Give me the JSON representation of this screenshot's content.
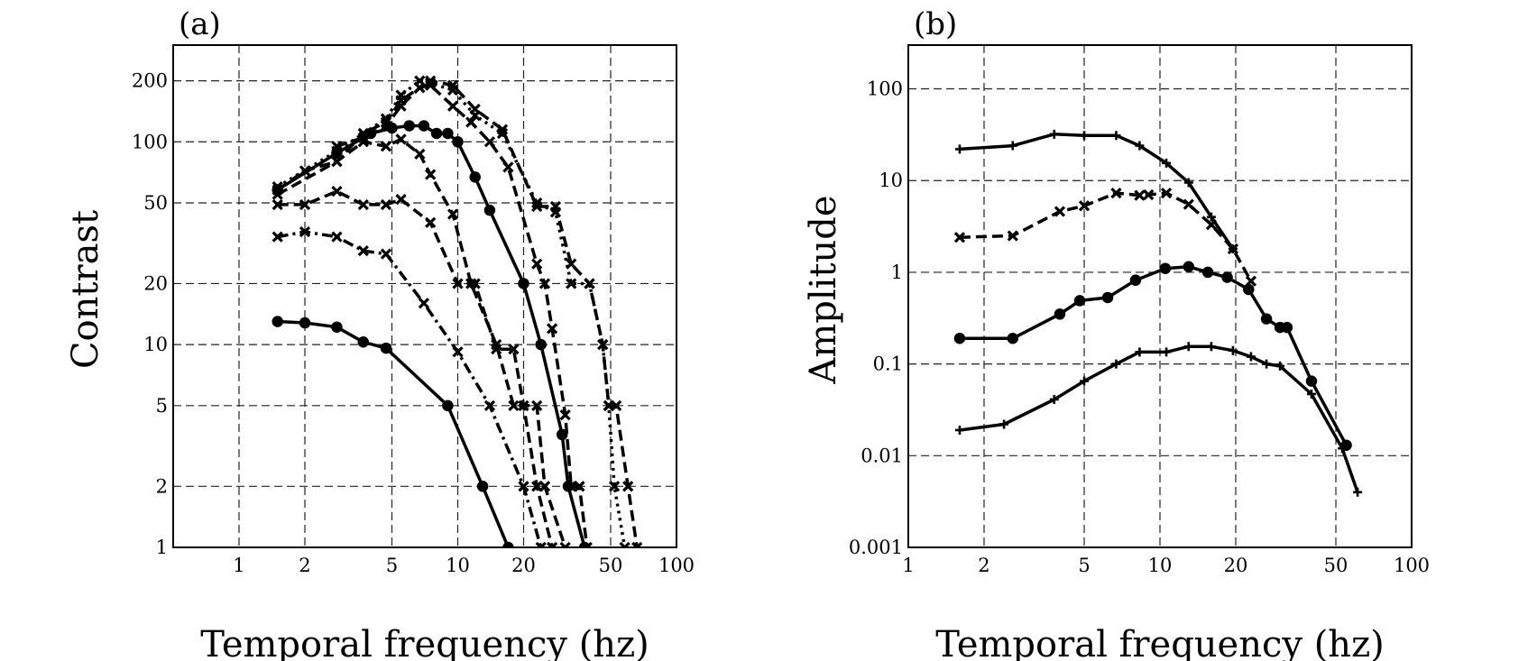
{
  "chart_data": [
    {
      "type": "line",
      "panel_label": "(a)",
      "xlabel": "Temporal frequency (hz)",
      "ylabel": "Contrast",
      "xscale": "log",
      "yscale": "log",
      "xlim": [
        0.5,
        100
      ],
      "ylim": [
        1,
        300
      ],
      "grid": true,
      "xticks": [
        1,
        2,
        5,
        10,
        20,
        50,
        100
      ],
      "xtick_labels": [
        "1",
        "2",
        "5",
        "10",
        "20",
        "50",
        "100"
      ],
      "yticks": [
        1,
        2,
        5,
        10,
        20,
        50,
        100,
        200
      ],
      "ytick_labels": [
        "1",
        "2",
        "5",
        "10",
        "20",
        "50",
        "100",
        "200"
      ],
      "series": [
        {
          "style": "solid",
          "marker": "circle",
          "x": [
            1.5,
            2,
            2.8,
            3.7,
            4.7,
            9,
            13,
            17
          ],
          "y": [
            13,
            12.8,
            12.2,
            10.3,
            9.6,
            5,
            2,
            1
          ]
        },
        {
          "style": "dashdot",
          "marker": "x",
          "x": [
            1.5,
            2,
            2.8,
            3.7,
            4.7,
            7,
            10,
            14,
            20,
            24
          ],
          "y": [
            34,
            36,
            34,
            29,
            28,
            16,
            9.2,
            5,
            2,
            1
          ]
        },
        {
          "style": "dashed",
          "marker": "x",
          "x": [
            1.5,
            2,
            2.8,
            3.7,
            4.7,
            5.5,
            7.5,
            10,
            12,
            15,
            18,
            20,
            23,
            27
          ],
          "y": [
            49,
            49,
            57,
            49,
            49,
            52,
            40,
            20,
            20,
            9.5,
            9.5,
            5,
            2,
            1
          ]
        },
        {
          "style": "dashed",
          "marker": "x",
          "x": [
            1.5,
            2,
            2.8,
            3.7,
            4.7,
            5.5,
            6.7,
            7.5,
            9.5,
            11.5,
            15,
            18,
            23,
            25,
            31
          ],
          "y": [
            58,
            72,
            80,
            100,
            95,
            103,
            87,
            69,
            44,
            20,
            10,
            5,
            5,
            2,
            1
          ]
        },
        {
          "style": "solid",
          "marker": "circle",
          "x": [
            1.5,
            2.8,
            4,
            5,
            6,
            7,
            8,
            9,
            10,
            12,
            14,
            20,
            24,
            30,
            32,
            38
          ],
          "y": [
            58,
            88,
            110,
            117,
            120,
            120,
            110,
            110,
            100,
            67,
            46,
            20,
            10,
            3.6,
            2,
            1
          ]
        },
        {
          "style": "dashed",
          "marker": "x",
          "x": [
            1.5,
            2.8,
            3.7,
            4.7,
            5.5,
            6.7,
            7.5,
            9.5,
            11.5,
            14,
            17,
            23,
            25,
            27,
            31,
            33,
            36,
            39
          ],
          "y": [
            55,
            80,
            110,
            125,
            160,
            185,
            190,
            150,
            125,
            100,
            75,
            25,
            20,
            12,
            4.5,
            2,
            2,
            1
          ]
        },
        {
          "style": "dotted",
          "marker": "x",
          "x": [
            1.5,
            2.8,
            3.7,
            4.7,
            5.5,
            6.7,
            7.5,
            9.5,
            12,
            16,
            23,
            28,
            33,
            40,
            46,
            49,
            52,
            58
          ],
          "y": [
            60,
            90,
            110,
            130,
            170,
            200,
            195,
            180,
            135,
            110,
            50,
            45,
            20,
            20,
            10,
            5,
            2,
            1
          ]
        },
        {
          "style": "dashed",
          "marker": "x",
          "x": [
            2.8,
            3.7,
            4.7,
            5.5,
            6.7,
            7.5,
            9.5,
            12,
            16,
            23,
            28,
            33,
            40,
            46,
            49,
            53,
            60,
            66
          ],
          "y": [
            95,
            105,
            120,
            150,
            185,
            200,
            190,
            145,
            115,
            48,
            48,
            25,
            20,
            10,
            5,
            5,
            2,
            1
          ]
        }
      ]
    },
    {
      "type": "line",
      "panel_label": "(b)",
      "xlabel": "Temporal frequency (hz)",
      "ylabel": "Amplitude",
      "xscale": "log",
      "yscale": "log",
      "xlim": [
        1,
        100
      ],
      "ylim": [
        0.001,
        300
      ],
      "grid": true,
      "xticks": [
        1,
        2,
        5,
        10,
        20,
        50,
        100
      ],
      "xtick_labels": [
        "1",
        "2",
        "5",
        "10",
        "20",
        "50",
        "100"
      ],
      "yticks": [
        0.001,
        0.01,
        0.1,
        1,
        10,
        100
      ],
      "ytick_labels": [
        "0.001",
        "0.01",
        "0.1",
        "1",
        "10",
        "100"
      ],
      "series": [
        {
          "style": "solid",
          "marker": "plus",
          "x": [
            1.6,
            2.6,
            3.8,
            5,
            6.7,
            8.3,
            10.6,
            13,
            16,
            19.5
          ],
          "y": [
            22,
            24,
            32,
            31,
            31,
            24,
            15.5,
            9.5,
            4,
            1.8
          ]
        },
        {
          "style": "dashed",
          "marker": "x",
          "x": [
            1.6,
            2.6,
            4,
            5,
            6.7,
            8.3,
            9,
            10.6,
            13,
            16,
            19.5,
            23
          ],
          "y": [
            2.4,
            2.5,
            4.6,
            5.3,
            7.3,
            6.9,
            7,
            7.3,
            5.5,
            3.3,
            1.8,
            0.8
          ]
        },
        {
          "style": "solid",
          "marker": "circle",
          "x": [
            1.6,
            2.6,
            4,
            4.8,
            6.2,
            8,
            10.5,
            13,
            15.5,
            18.5,
            22.5,
            26.5,
            30,
            32,
            40,
            55
          ],
          "y": [
            0.19,
            0.19,
            0.35,
            0.49,
            0.53,
            0.82,
            1.1,
            1.15,
            1,
            0.88,
            0.65,
            0.31,
            0.25,
            0.25,
            0.065,
            0.013
          ]
        },
        {
          "style": "solid",
          "marker": "plus",
          "x": [
            1.6,
            2.4,
            3.8,
            5,
            6.7,
            8.3,
            10.6,
            13,
            16,
            19.5,
            23,
            26.5,
            30,
            40,
            53,
            61
          ],
          "y": [
            0.019,
            0.022,
            0.041,
            0.065,
            0.1,
            0.135,
            0.135,
            0.155,
            0.155,
            0.14,
            0.12,
            0.1,
            0.095,
            0.047,
            0.012,
            0.004
          ]
        }
      ]
    }
  ]
}
